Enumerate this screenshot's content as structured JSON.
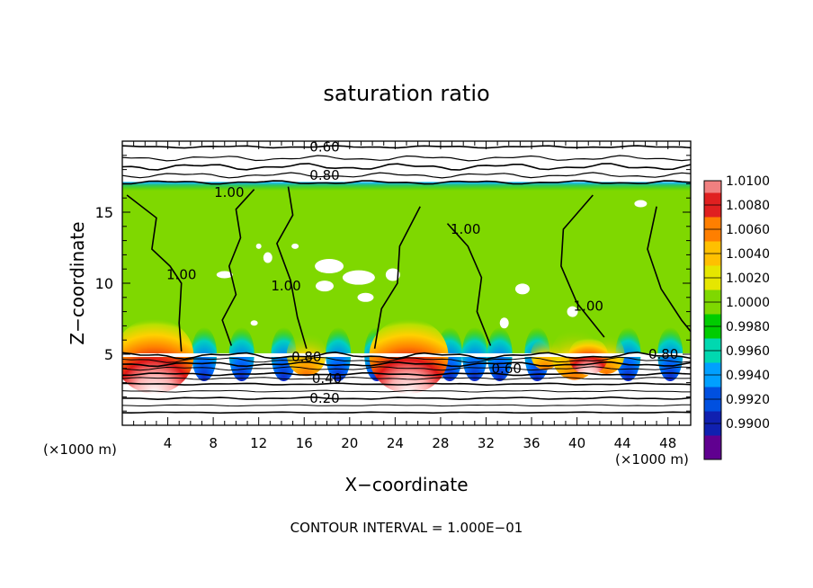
{
  "chart_data": {
    "type": "heatmap",
    "title": "saturation ratio",
    "xlabel": "X−coordinate",
    "ylabel": "Z−coordinate",
    "x_unit_label": "(×1000 m)",
    "z_unit_label": "(×1000 m)",
    "xlim": [
      0,
      50
    ],
    "ylim": [
      0,
      20
    ],
    "x_ticks": [
      4,
      8,
      12,
      16,
      20,
      24,
      28,
      32,
      36,
      40,
      44,
      48
    ],
    "y_ticks": [
      5,
      10,
      15
    ],
    "footer": "CONTOUR INTERVAL = 1.000E−01",
    "colorbar": {
      "levels": [
        "1.0100",
        "1.0080",
        "1.0060",
        "1.0040",
        "1.0020",
        "1.0000",
        "0.9980",
        "0.9960",
        "0.9940",
        "0.9920",
        "0.9900"
      ],
      "colors": [
        "#f08080",
        "#e02020",
        "#ff7f00",
        "#ffc000",
        "#e6e600",
        "#7fd800",
        "#00cc00",
        "#00d8b0",
        "#00a0ff",
        "#0050e0",
        "#1020b0",
        "#600090"
      ]
    },
    "contour_labels": [
      {
        "text": "0.60",
        "x": 17.8,
        "y": 19.6
      },
      {
        "text": "0.80",
        "x": 17.8,
        "y": 17.6
      },
      {
        "text": "1.00",
        "x": 9.4,
        "y": 16.4
      },
      {
        "text": "1.00",
        "x": 30.2,
        "y": 13.8
      },
      {
        "text": "1.00",
        "x": 5.2,
        "y": 10.6
      },
      {
        "text": "1.00",
        "x": 14.4,
        "y": 9.8
      },
      {
        "text": "1.00",
        "x": 41.0,
        "y": 8.4
      },
      {
        "text": "0.80",
        "x": 16.2,
        "y": 4.8
      },
      {
        "text": "0.60",
        "x": 33.8,
        "y": 4.0
      },
      {
        "text": "0.80",
        "x": 47.6,
        "y": 5.0
      },
      {
        "text": "0.40",
        "x": 18.0,
        "y": 3.3
      },
      {
        "text": "0.20",
        "x": 17.8,
        "y": 1.9
      }
    ],
    "supersaturated_cells": [
      {
        "x": 2.8,
        "peak": "1.0100"
      },
      {
        "x": 25.2,
        "peak": "1.0100"
      },
      {
        "x": 41.0,
        "peak": "1.0060"
      }
    ],
    "cloud_layer_z": [
      5,
      17
    ]
  }
}
